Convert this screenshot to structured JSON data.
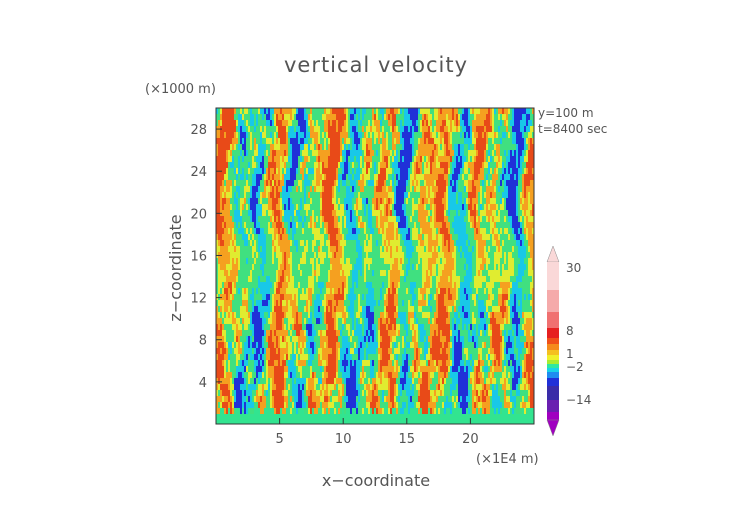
{
  "chart_data": {
    "type": "heatmap",
    "title": "vertical velocity",
    "xlabel": "x−coordinate",
    "ylabel": "z−coordinate",
    "x_units": "(×1E4 m)",
    "y_units": "(×1000 m)",
    "annotations": [
      "y=100 m",
      "t=8400 sec"
    ],
    "xlim": [
      0,
      25
    ],
    "ylim": [
      0,
      30
    ],
    "x_ticks": [
      5,
      10,
      15,
      20
    ],
    "y_ticks": [
      4,
      8,
      12,
      16,
      20,
      24,
      28
    ],
    "colorbar": {
      "labels": [
        "30",
        "8",
        "1",
        "−2",
        "−14"
      ],
      "label_values": [
        30,
        8,
        1,
        -2,
        -14
      ],
      "extend": "both",
      "palette": [
        "#a000c0",
        "#6a1fb0",
        "#3a2ca8",
        "#2030d8",
        "#1e8cf0",
        "#18d2e8",
        "#2ee8a0",
        "#a8ec30",
        "#f0f02a",
        "#f5c020",
        "#f58a1c",
        "#f0501a",
        "#e62020",
        "#f07070",
        "#f5aaaa",
        "#fad8d8"
      ]
    },
    "field_colors": {
      "strong_down": "#2030d8",
      "down": "#18c8e8",
      "weak": "#40e080",
      "weak_up": "#e0ec30",
      "up": "#f5a020",
      "strong_up": "#e84a18",
      "near_surface": "#32e490"
    }
  }
}
